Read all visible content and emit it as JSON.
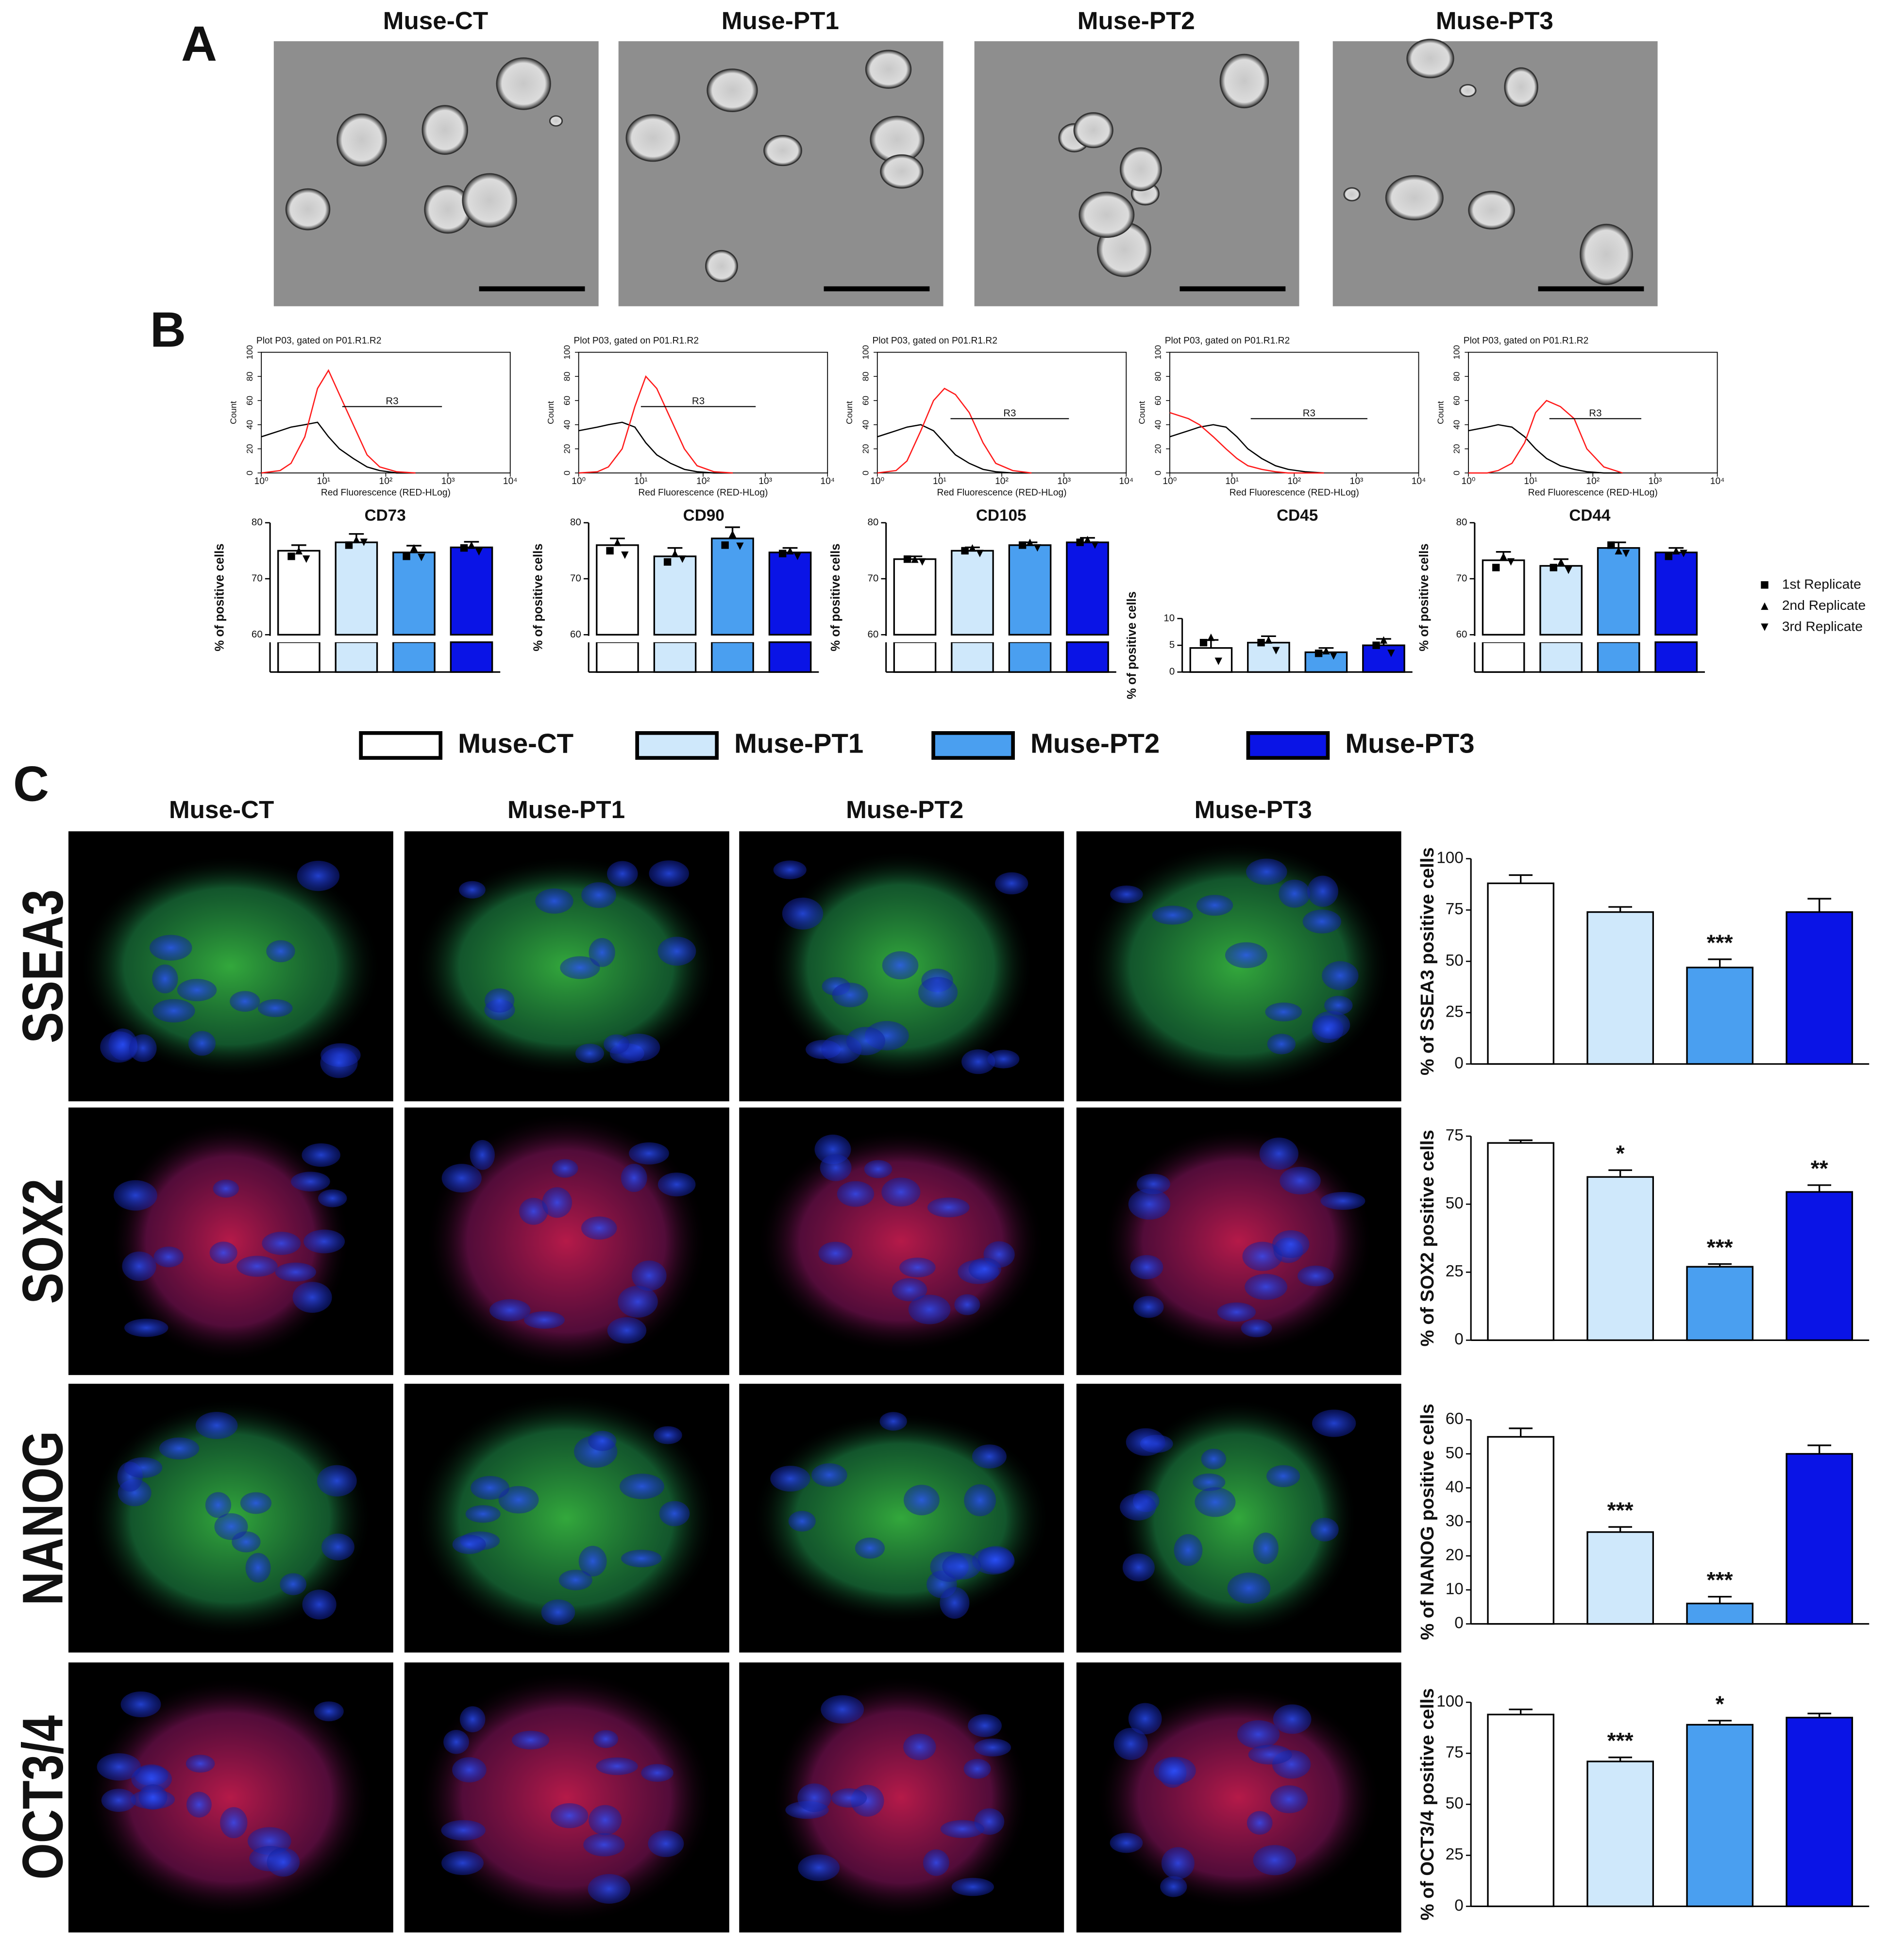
{
  "panel_labels": [
    "A",
    "B",
    "C"
  ],
  "panel_a_titles": [
    "Muse-CT",
    "Muse-PT1",
    "Muse-PT2",
    "Muse-PT3"
  ],
  "panel_c_titles": [
    "Muse-CT",
    "Muse-PT1",
    "Muse-PT2",
    "Muse-PT3"
  ],
  "panel_c_rows": [
    "SSEA3",
    "SOX2",
    "NANOG",
    "OCT3/4"
  ],
  "legend": {
    "names": [
      "Muse-CT",
      "Muse-PT1",
      "Muse-PT2",
      "Muse-PT3"
    ],
    "colors": [
      "#ffffff",
      "#cfe8fb",
      "#4a9ff0",
      "#0a14e6"
    ]
  },
  "replicate_legend": {
    "names": [
      "1st Replicate",
      "2nd Replicate",
      "3rd Replicate"
    ],
    "markers": [
      "square",
      "triangle-up",
      "triangle-down"
    ]
  },
  "chart_data": [
    {
      "type": "line",
      "title": "Plot P03, gated on P01.R1.R2",
      "x_label": "Red Fluorescence (RED-HLog)",
      "y_label": "Count",
      "log_x": true,
      "x": [
        1,
        2,
        3,
        5,
        8,
        12,
        18,
        30,
        50,
        80,
        150,
        300
      ],
      "xlim": [
        1,
        10000
      ],
      "xticks": [
        {
          "value": 1,
          "label": "10⁰"
        },
        {
          "value": 10,
          "label": "10¹"
        },
        {
          "value": 100,
          "label": "10²"
        },
        {
          "value": 1000,
          "label": "10³"
        },
        {
          "value": 10000,
          "label": "10⁴"
        }
      ],
      "ylim": [
        0,
        100
      ],
      "yticks": [
        0,
        20,
        40,
        60,
        80,
        100
      ],
      "series": [
        {
          "color": "#000000",
          "values": [
            30,
            35,
            38,
            40,
            42,
            30,
            20,
            12,
            5,
            2,
            0,
            0
          ]
        },
        {
          "color": "#ff1a1a",
          "values": [
            0,
            2,
            8,
            30,
            70,
            85,
            65,
            40,
            15,
            5,
            1,
            0
          ]
        }
      ],
      "gate": {
        "label": "R3",
        "x": [
          20,
          800
        ],
        "y": 55
      }
    },
    {
      "type": "line",
      "title": "Plot P03, gated on P01.R1.R2",
      "x_label": "Red Fluorescence (RED-HLog)",
      "y_label": "Count",
      "log_x": true,
      "x": [
        1,
        2,
        3,
        5,
        8,
        12,
        18,
        30,
        50,
        80,
        150,
        300
      ],
      "xlim": [
        1,
        10000
      ],
      "xticks": [
        {
          "value": 1,
          "label": "10⁰"
        },
        {
          "value": 10,
          "label": "10¹"
        },
        {
          "value": 100,
          "label": "10²"
        },
        {
          "value": 1000,
          "label": "10³"
        },
        {
          "value": 10000,
          "label": "10⁴"
        }
      ],
      "ylim": [
        0,
        100
      ],
      "yticks": [
        0,
        20,
        40,
        60,
        80,
        100
      ],
      "series": [
        {
          "color": "#000000",
          "values": [
            35,
            38,
            40,
            42,
            38,
            25,
            15,
            8,
            3,
            1,
            0,
            0
          ]
        },
        {
          "color": "#ff1a1a",
          "values": [
            0,
            1,
            5,
            20,
            55,
            80,
            70,
            45,
            20,
            6,
            1,
            0
          ]
        }
      ],
      "gate": {
        "label": "R3",
        "x": [
          10,
          700
        ],
        "y": 55
      }
    },
    {
      "type": "line",
      "title": "Plot P03, gated on P01.R1.R2",
      "x_label": "Red Fluorescence (RED-HLog)",
      "y_label": "Count",
      "log_x": true,
      "x": [
        1,
        2,
        3,
        5,
        8,
        12,
        18,
        30,
        50,
        80,
        150,
        300
      ],
      "xlim": [
        1,
        10000
      ],
      "xticks": [
        {
          "value": 1,
          "label": "10⁰"
        },
        {
          "value": 10,
          "label": "10¹"
        },
        {
          "value": 100,
          "label": "10²"
        },
        {
          "value": 1000,
          "label": "10³"
        },
        {
          "value": 10000,
          "label": "10⁴"
        }
      ],
      "ylim": [
        0,
        100
      ],
      "yticks": [
        0,
        20,
        40,
        60,
        80,
        100
      ],
      "series": [
        {
          "color": "#000000",
          "values": [
            30,
            35,
            38,
            40,
            35,
            25,
            15,
            8,
            3,
            1,
            0,
            0
          ]
        },
        {
          "color": "#ff1a1a",
          "values": [
            0,
            2,
            10,
            35,
            60,
            70,
            65,
            50,
            25,
            8,
            2,
            0
          ]
        }
      ],
      "gate": {
        "label": "R3",
        "x": [
          15,
          1200
        ],
        "y": 45
      }
    },
    {
      "type": "line",
      "title": "Plot P03, gated on P01.R1.R2",
      "x_label": "Red Fluorescence (RED-HLog)",
      "y_label": "Count",
      "log_x": true,
      "x": [
        1,
        2,
        3,
        5,
        8,
        12,
        18,
        30,
        50,
        80,
        150,
        300
      ],
      "xlim": [
        1,
        10000
      ],
      "xticks": [
        {
          "value": 1,
          "label": "10⁰"
        },
        {
          "value": 10,
          "label": "10¹"
        },
        {
          "value": 100,
          "label": "10²"
        },
        {
          "value": 1000,
          "label": "10³"
        },
        {
          "value": 10000,
          "label": "10⁴"
        }
      ],
      "ylim": [
        0,
        100
      ],
      "yticks": [
        0,
        20,
        40,
        60,
        80,
        100
      ],
      "series": [
        {
          "color": "#000000",
          "values": [
            30,
            35,
            38,
            40,
            38,
            30,
            20,
            12,
            6,
            3,
            1,
            0
          ]
        },
        {
          "color": "#ff1a1a",
          "values": [
            50,
            45,
            40,
            30,
            20,
            12,
            6,
            3,
            1,
            0,
            0,
            0
          ]
        }
      ],
      "gate": {
        "label": "R3",
        "x": [
          20,
          1500
        ],
        "y": 45
      }
    },
    {
      "type": "line",
      "title": "Plot P03, gated on P01.R1.R2",
      "x_label": "Red Fluorescence (RED-HLog)",
      "y_label": "Count",
      "log_x": true,
      "x": [
        1,
        2,
        3,
        5,
        8,
        12,
        18,
        30,
        50,
        80,
        150,
        300
      ],
      "xlim": [
        1,
        10000
      ],
      "xticks": [
        {
          "value": 1,
          "label": "10⁰"
        },
        {
          "value": 10,
          "label": "10¹"
        },
        {
          "value": 100,
          "label": "10²"
        },
        {
          "value": 1000,
          "label": "10³"
        },
        {
          "value": 10000,
          "label": "10⁴"
        }
      ],
      "ylim": [
        0,
        100
      ],
      "yticks": [
        0,
        20,
        40,
        60,
        80,
        100
      ],
      "series": [
        {
          "color": "#000000",
          "values": [
            35,
            38,
            40,
            38,
            30,
            20,
            12,
            6,
            3,
            1,
            0,
            0
          ]
        },
        {
          "color": "#ff1a1a",
          "values": [
            0,
            0,
            2,
            8,
            25,
            50,
            60,
            55,
            45,
            20,
            5,
            0
          ]
        }
      ],
      "gate": {
        "label": "R3",
        "x": [
          20,
          600
        ],
        "y": 45
      }
    },
    {
      "type": "bar",
      "title": "CD73",
      "y_label": "% of positive cells",
      "ylim": [
        60,
        80
      ],
      "yticks": [
        60,
        70,
        80
      ],
      "values": [
        75,
        76.5,
        74.7,
        75.6
      ],
      "errors": [
        1,
        1.5,
        1.2,
        1
      ],
      "replicates": [
        [
          74,
          75,
          73.5
        ],
        [
          76,
          77,
          76.5
        ],
        [
          74,
          75.5,
          73.8
        ],
        [
          75.5,
          76,
          74.8
        ]
      ]
    },
    {
      "type": "bar",
      "title": "CD90",
      "y_label": "% of positive cells",
      "ylim": [
        60,
        80
      ],
      "yticks": [
        60,
        70,
        80
      ],
      "values": [
        76,
        74,
        77.2,
        74.7
      ],
      "errors": [
        1.2,
        1.5,
        2,
        0.8
      ],
      "replicates": [
        [
          75,
          76.5,
          74.2
        ],
        [
          73,
          74.5,
          73.5
        ],
        [
          76,
          78,
          75.8
        ],
        [
          74.5,
          75,
          74
        ]
      ]
    },
    {
      "type": "bar",
      "title": "CD105",
      "y_label": "% of positive cells",
      "ylim": [
        60,
        80
      ],
      "yticks": [
        60,
        70,
        80
      ],
      "values": [
        73.5,
        75,
        76,
        76.5
      ],
      "errors": [
        0.5,
        0.6,
        0.5,
        0.8
      ],
      "replicates": [
        [
          73.5,
          73.5,
          73
        ],
        [
          75,
          75.5,
          74.5
        ],
        [
          76,
          76.5,
          75.5
        ],
        [
          76.5,
          77,
          76
        ]
      ]
    },
    {
      "type": "bar",
      "title": "CD45",
      "y_label": "% of positive cells",
      "ylim": [
        0,
        10
      ],
      "yticks": [
        0,
        5,
        10
      ],
      "values": [
        4.5,
        5.5,
        3.7,
        5
      ],
      "errors": [
        1.5,
        1.2,
        0.8,
        1.2
      ],
      "replicates": [
        [
          5.5,
          6.5,
          2
        ],
        [
          5.5,
          6,
          4
        ],
        [
          3.5,
          4,
          3
        ],
        [
          5,
          6,
          3.5
        ]
      ]
    },
    {
      "type": "bar",
      "title": "CD44",
      "y_label": "% of positive cells",
      "ylim": [
        60,
        80
      ],
      "yticks": [
        60,
        70,
        80
      ],
      "values": [
        73.3,
        72.3,
        75.5,
        74.7
      ],
      "errors": [
        1.5,
        1.2,
        1,
        0.8
      ],
      "replicates": [
        [
          72,
          74,
          73
        ],
        [
          72,
          73,
          71.5
        ],
        [
          76,
          75,
          74.5
        ],
        [
          74,
          75,
          74.5
        ]
      ]
    },
    {
      "type": "bar",
      "y_label": "% of SSEA3 positive cells",
      "ylim": [
        0,
        100
      ],
      "yticks": [
        0,
        25,
        50,
        75,
        100
      ],
      "values": [
        88,
        74,
        47,
        74
      ],
      "errors": [
        4,
        2.5,
        4,
        6.5
      ],
      "significance": [
        null,
        null,
        "***",
        null
      ]
    },
    {
      "type": "bar",
      "y_label": "% of SOX2 positive cells",
      "ylim": [
        0,
        75
      ],
      "yticks": [
        0,
        25,
        50,
        75
      ],
      "values": [
        72.5,
        60,
        27,
        54.5
      ],
      "errors": [
        1,
        2.5,
        1,
        2.5
      ],
      "significance": [
        null,
        "*",
        "***",
        "**"
      ]
    },
    {
      "type": "bar",
      "y_label": "% of NANOG positive cells",
      "ylim": [
        0,
        60
      ],
      "yticks": [
        0,
        10,
        20,
        30,
        40,
        50,
        60
      ],
      "values": [
        55,
        27,
        6,
        50
      ],
      "errors": [
        2.5,
        1.5,
        2,
        2.5
      ],
      "significance": [
        null,
        "***",
        "***",
        null
      ]
    },
    {
      "type": "bar",
      "y_label": "% of OCT3/4 positive cells",
      "ylim": [
        0,
        100
      ],
      "yticks": [
        0,
        25,
        50,
        75,
        100
      ],
      "values": [
        94,
        71,
        89,
        92.5
      ],
      "errors": [
        2.5,
        2,
        2,
        2
      ],
      "significance": [
        null,
        "***",
        "*",
        null
      ]
    }
  ]
}
